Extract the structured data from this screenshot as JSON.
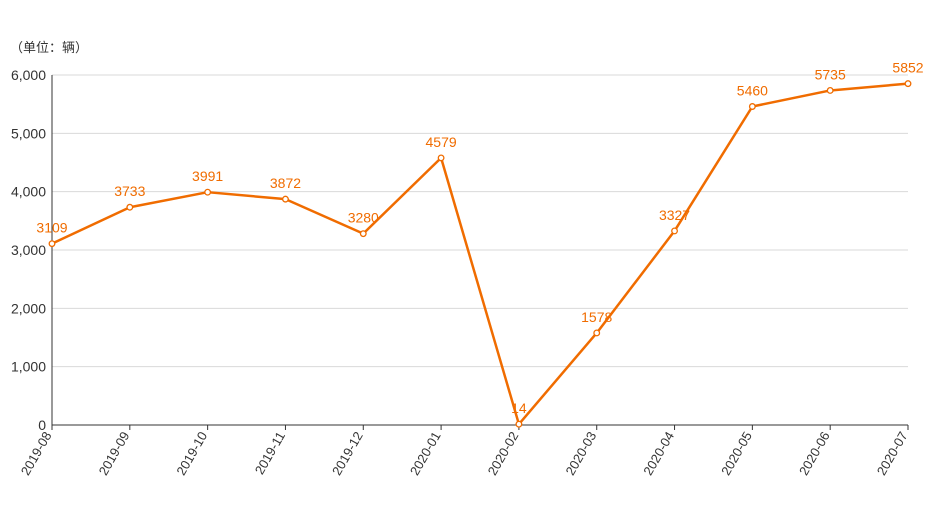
{
  "chart_data": {
    "type": "line",
    "unit_label": "（单位：辆）",
    "categories": [
      "2019-08",
      "2019-09",
      "2019-10",
      "2019-11",
      "2019-12",
      "2020-01",
      "2020-02",
      "2020-03",
      "2020-04",
      "2020-05",
      "2020-06",
      "2020-07"
    ],
    "series": [
      {
        "values": [
          3109,
          3733,
          3991,
          3872,
          3280,
          4579,
          14,
          1578,
          3327,
          5460,
          5735,
          5852
        ],
        "color": "#f06c00"
      }
    ],
    "ylim": [
      0,
      6000
    ],
    "yticks": [
      0,
      1000,
      2000,
      3000,
      4000,
      5000,
      6000
    ],
    "ytick_labels": [
      "0",
      "1,000",
      "2,000",
      "3,000",
      "4,000",
      "5,000",
      "6,000"
    ],
    "grid": true,
    "data_labels": true,
    "axis_color": "#333333",
    "grid_color": "#d9d9d9"
  }
}
